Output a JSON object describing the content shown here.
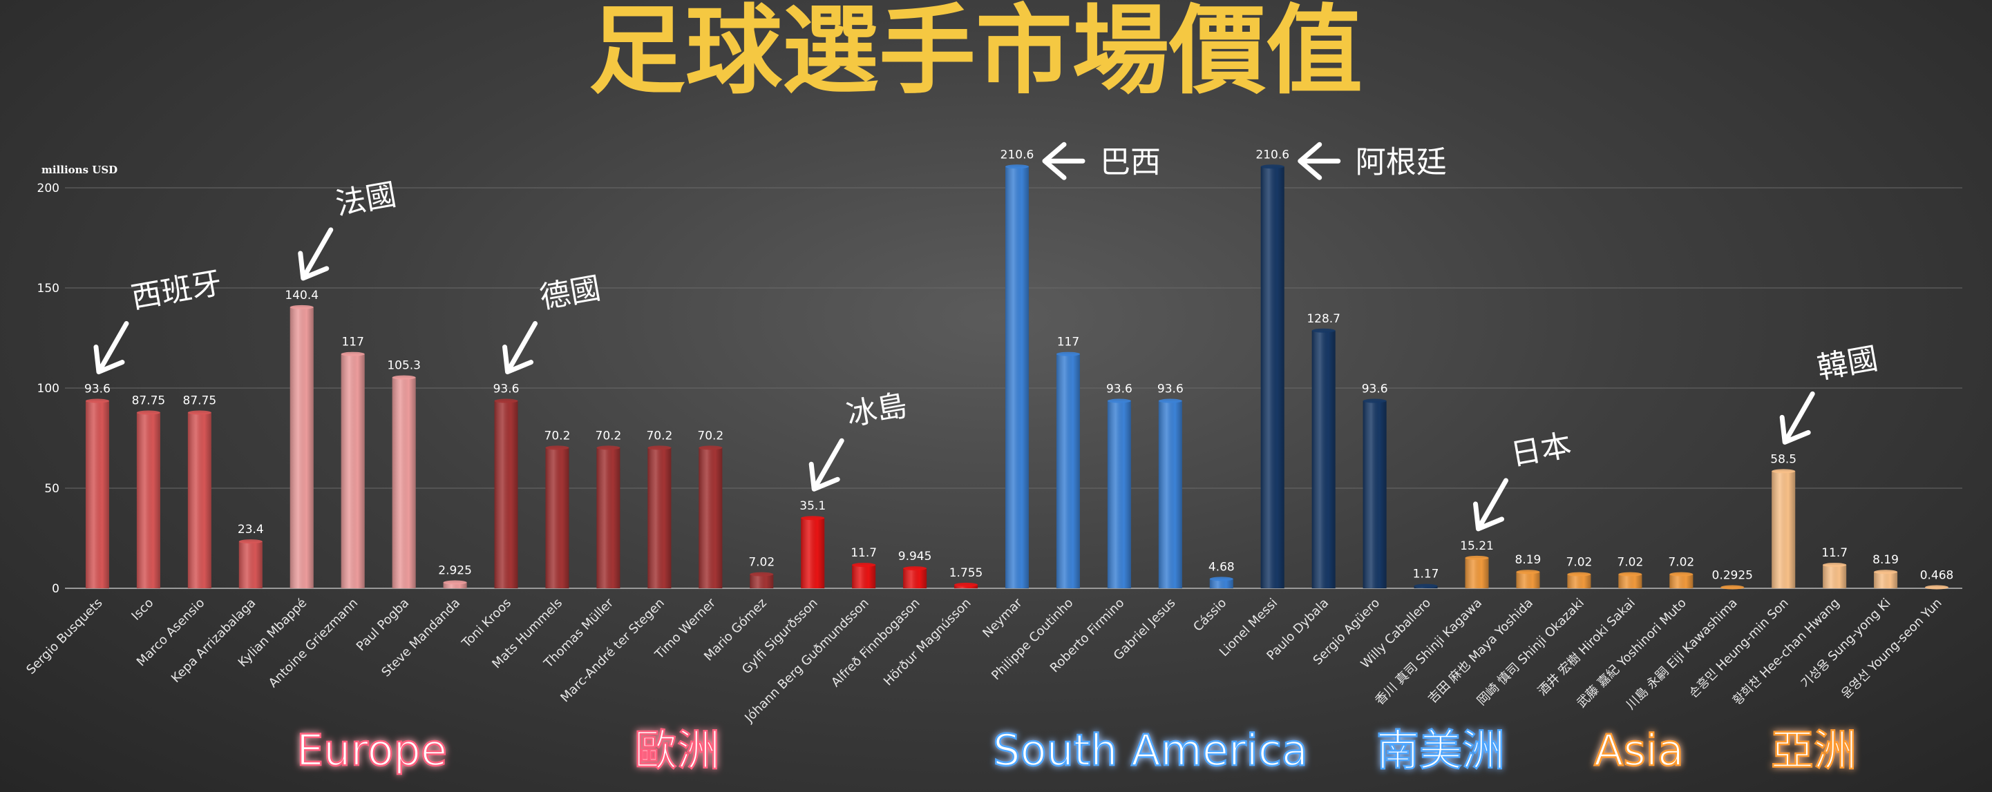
{
  "title": "足球選手市場價值",
  "chart_data": {
    "type": "bar",
    "title": "足球選手市場價值",
    "ylabel": "millions USD",
    "xlabel": "",
    "ylim": [
      0,
      200
    ],
    "yticks": [
      0,
      50,
      100,
      150,
      200
    ],
    "grid": true,
    "legend": "none",
    "categories": [
      "Sergio Busquets",
      "Isco",
      "Marco Asensio",
      "Kepa Arrizabalaga",
      "Kylian Mbappé",
      "Antoine Griezmann",
      "Paul Pogba",
      "Steve Mandanda",
      "Toni Kroos",
      "Mats Hummels",
      "Thomas Müller",
      "Marc-André ter Stegen",
      "Timo Werner",
      "Mario Gómez",
      "Gylfi Sigurðsson",
      "Jóhann Berg Guðmundsson",
      "Alfreð Finnbogason",
      "Hörður Magnússon",
      "Neymar",
      "Philippe Coutinho",
      "Roberto Firmino",
      "Gabriel Jesus",
      "Cássio",
      "Lionel Messi",
      "Paulo Dybala",
      "Sergio Agüero",
      "Willy Caballero",
      "香川 真司 Shinji Kagawa",
      "吉田 麻也 Maya Yoshida",
      "岡崎 慎司 Shinji Okazaki",
      "酒井 宏樹 Hiroki Sakai",
      "武藤 嘉紀 Yoshinori Muto",
      "川島 永嗣 Eiji Kawashima",
      "손흥민 Heung-min Son",
      "황희찬 Hee-chan Hwang",
      "기성용 Sung-yong Ki",
      "윤영선 Young-seon Yun"
    ],
    "values": [
      93.6,
      87.75,
      87.75,
      23.4,
      140.4,
      117,
      105.3,
      2.925,
      93.6,
      70.2,
      70.2,
      70.2,
      70.2,
      7.02,
      35.1,
      11.7,
      9.945,
      1.755,
      210.6,
      117,
      93.6,
      93.6,
      4.68,
      210.6,
      128.7,
      93.6,
      1.17,
      15.21,
      8.19,
      7.02,
      7.02,
      7.02,
      0.2925,
      58.5,
      11.7,
      8.19,
      0.468
    ],
    "value_labels": [
      "93.6",
      "87.75",
      "87.75",
      "23.4",
      "140.4",
      "117",
      "105.3",
      "2.925",
      "93.6",
      "70.2",
      "70.2",
      "70.2",
      "70.2",
      "7.02",
      "35.1",
      "11.7",
      "9.945",
      "1.755",
      "210.6",
      "117",
      "93.6",
      "93.6",
      "4.68",
      "210.6",
      "128.7",
      "93.6",
      "1.17",
      "15.21",
      "8.19",
      "7.02",
      "7.02",
      "7.02",
      "0.2925",
      "58.5",
      "11.7",
      "8.19",
      "0.468"
    ],
    "countries": [
      {
        "label": "西班牙",
        "color": "#d65656",
        "members": [
          0,
          1,
          2,
          3
        ]
      },
      {
        "label": "法國",
        "color": "#ec9c9c",
        "members": [
          4,
          5,
          6,
          7
        ]
      },
      {
        "label": "德國",
        "color": "#a33434",
        "members": [
          8,
          9,
          10,
          11,
          12,
          13
        ]
      },
      {
        "label": "冰島",
        "color": "#e81414",
        "members": [
          14,
          15,
          16,
          17
        ]
      },
      {
        "label": "巴西",
        "color": "#3c82d6",
        "members": [
          18,
          19,
          20,
          21,
          22
        ]
      },
      {
        "label": "阿根廷",
        "color": "#173865",
        "members": [
          23,
          24,
          25,
          26
        ]
      },
      {
        "label": "日本",
        "color": "#f0993c",
        "members": [
          27,
          28,
          29,
          30,
          31,
          32
        ]
      },
      {
        "label": "韓國",
        "color": "#f8c088",
        "members": [
          33,
          34,
          35,
          36
        ]
      }
    ],
    "regions": [
      {
        "label": "Europe",
        "color": "#ff5f7e"
      },
      {
        "label": "歐洲",
        "color": "#ff5f7e"
      },
      {
        "label": "South America",
        "color": "#4ea6ff"
      },
      {
        "label": "南美洲",
        "color": "#4ea6ff"
      },
      {
        "label": "Asia",
        "color": "#ff9a2e"
      },
      {
        "label": "亞洲",
        "color": "#ff9a2e"
      }
    ]
  }
}
